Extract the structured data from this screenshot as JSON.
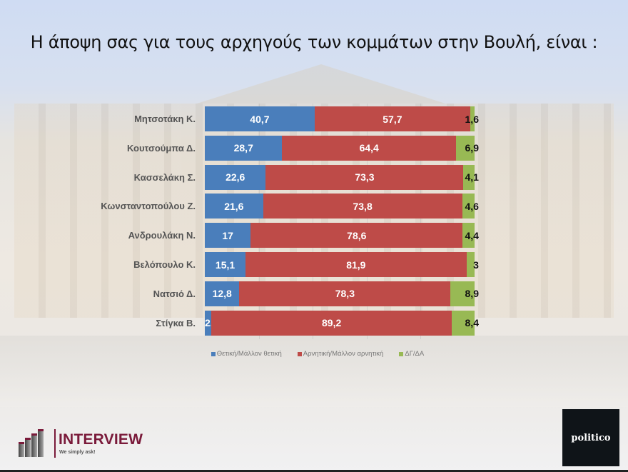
{
  "title": "Η άποψη σας για τους αρχηγούς των κομμάτων στην Βουλή,  είναι :",
  "legend": [
    {
      "label": "Θετική/Μάλλον θετική",
      "color": "#4a7ebb"
    },
    {
      "label": "Αρνητική/Μάλλον αρνητική",
      "color": "#be4b48"
    },
    {
      "label": "ΔΓ/ΔΑ",
      "color": "#98b954"
    }
  ],
  "rows": [
    {
      "name": "Μητσοτάκη Κ.",
      "pos": "40,7",
      "neg": "57,7",
      "dk": "1,6"
    },
    {
      "name": "Κουτσούμπα Δ.",
      "pos": "28,7",
      "neg": "64,4",
      "dk": "6,9"
    },
    {
      "name": "Κασσελάκη Σ.",
      "pos": "22,6",
      "neg": "73,3",
      "dk": "4,1"
    },
    {
      "name": "Κωνσταντοπούλου Ζ.",
      "pos": "21,6",
      "neg": "73,8",
      "dk": "4,6"
    },
    {
      "name": "Ανδρουλάκη Ν.",
      "pos": "17",
      "neg": "78,6",
      "dk": "4,4"
    },
    {
      "name": "Βελόπουλο Κ.",
      "pos": "15,1",
      "neg": "81,9",
      "dk": "3"
    },
    {
      "name": "Νατσιό Δ.",
      "pos": "12,8",
      "neg": "78,3",
      "dk": "8,9"
    },
    {
      "name": "Στίγκα Β.",
      "pos": "2,4",
      "neg": "89,2",
      "dk": "8,4"
    }
  ],
  "logos": {
    "interview_name": "INTERVIEW",
    "interview_tagline": "We simply ask!",
    "politico": "politico"
  },
  "chart_data": {
    "type": "bar",
    "orientation": "horizontal",
    "stacked": true,
    "title": "Η άποψη σας για τους αρχηγούς των κομμάτων στην Βουλή,  είναι :",
    "categories": [
      "Μητσοτάκη Κ.",
      "Κουτσούμπα Δ.",
      "Κασσελάκη Σ.",
      "Κωνσταντοπούλου Ζ.",
      "Ανδρουλάκη Ν.",
      "Βελόπουλο Κ.",
      "Νατσιό Δ.",
      "Στίγκα Β."
    ],
    "series": [
      {
        "name": "Θετική/Μάλλον θετική",
        "color": "#4a7ebb",
        "values": [
          40.7,
          28.7,
          22.6,
          21.6,
          17,
          15.1,
          12.8,
          2.4
        ]
      },
      {
        "name": "Αρνητική/Μάλλον αρνητική",
        "color": "#be4b48",
        "values": [
          57.7,
          64.4,
          73.3,
          73.8,
          78.6,
          81.9,
          78.3,
          89.2
        ]
      },
      {
        "name": "ΔΓ/ΔΑ",
        "color": "#98b954",
        "values": [
          1.6,
          6.9,
          4.1,
          4.6,
          4.4,
          3,
          8.9,
          8.4
        ]
      }
    ],
    "xlim": [
      0,
      100
    ],
    "xlabel": "",
    "ylabel": "",
    "grid": true,
    "legend_position": "bottom",
    "data_labels": true
  }
}
